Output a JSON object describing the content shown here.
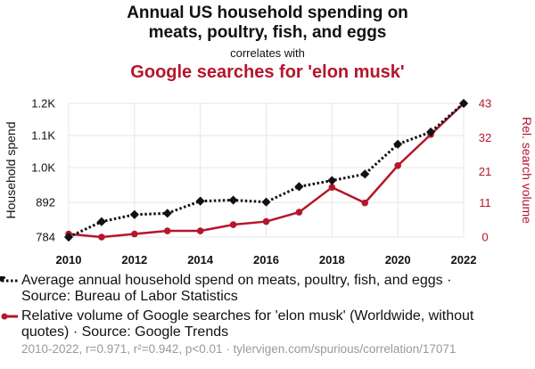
{
  "header": {
    "title_line1": "Annual US household spending on",
    "title_line2": "meats, poultry, fish, and eggs",
    "correlates": "correlates with",
    "subtitle": "Google searches for 'elon musk'"
  },
  "legend": {
    "series1": "Average annual household spend on meats, poultry, fish, and eggs · Source: Bureau of Labor Statistics",
    "series2": "Relative volume of Google searches for 'elon musk' (Worldwide, without quotes) · Source: Google Trends"
  },
  "footer": "2010-2022, r=0.971, r²=0.942, p<0.01 · tylervigen.com/spurious/correlation/17071",
  "colors": {
    "series1": "#111111",
    "series2": "#b5162b",
    "grid": "#e6e6e6",
    "legend_text": "#9a9a9a"
  },
  "chart_data": {
    "type": "line",
    "x": [
      2010,
      2011,
      2012,
      2013,
      2014,
      2015,
      2016,
      2017,
      2018,
      2019,
      2020,
      2021,
      2022
    ],
    "x_ticks": [
      2010,
      2012,
      2014,
      2016,
      2018,
      2020,
      2022
    ],
    "xlim": [
      2010,
      2022
    ],
    "grid": true,
    "legend_position": "bottom",
    "left_axis": {
      "label": "Household spend",
      "range": [
        784,
        1200
      ],
      "ticks": [
        784,
        892,
        1000,
        1100,
        1200
      ],
      "tick_labels": [
        "784",
        "892",
        "1.0K",
        "1.1K",
        "1.2K"
      ]
    },
    "right_axis": {
      "label": "Rel. search volume",
      "range": [
        0,
        43
      ],
      "ticks": [
        0,
        11,
        21,
        32,
        43
      ],
      "tick_labels": [
        "0",
        "11",
        "21",
        "32",
        "43"
      ]
    },
    "series": [
      {
        "name": "Average annual household spend on meats, poultry, fish, and eggs",
        "axis": "left",
        "style": "dotted",
        "marker": "diamond",
        "values": [
          784,
          832,
          854,
          858,
          896,
          899,
          893,
          941,
          960,
          980,
          1073,
          1111,
          1200
        ]
      },
      {
        "name": "Relative volume of Google searches for 'elon musk'",
        "axis": "right",
        "style": "solid",
        "marker": "circle",
        "values": [
          1,
          0,
          1,
          2,
          2,
          4,
          5,
          8,
          16,
          11,
          23,
          33,
          43
        ]
      }
    ]
  }
}
